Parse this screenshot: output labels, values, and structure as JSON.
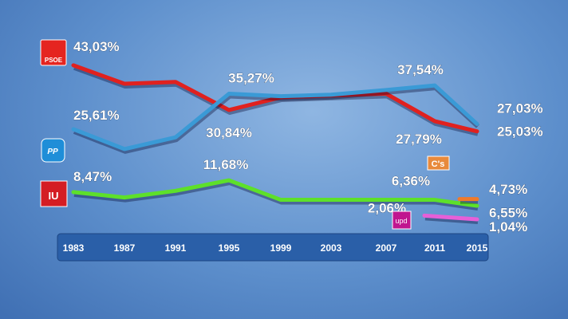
{
  "chart_data": {
    "type": "line",
    "categories": [
      "1983",
      "1987",
      "1991",
      "1995",
      "1999",
      "2003",
      "2007",
      "2011",
      "2015"
    ],
    "ylim": [
      0,
      45
    ],
    "grid": false,
    "series": [
      {
        "name": "PSOE",
        "color": "#e0211f",
        "values": [
          43.03,
          38.0,
          38.5,
          30.84,
          34.3,
          34.8,
          35.3,
          27.79,
          25.03
        ],
        "labels": [
          {
            "i": 0,
            "text": "43,03%"
          },
          {
            "i": 3,
            "text": "30,84%"
          },
          {
            "i": 7,
            "text": "27,79%"
          },
          {
            "i": 8,
            "text": "25,03%"
          }
        ]
      },
      {
        "name": "PP",
        "color": "#3a9ad6",
        "values": [
          25.61,
          20.2,
          23.4,
          35.27,
          34.6,
          35.0,
          36.3,
          37.54,
          27.03
        ],
        "labels": [
          {
            "i": 0,
            "text": "25,61%"
          },
          {
            "i": 3,
            "text": "35,27%"
          },
          {
            "i": 7,
            "text": "37,54%"
          },
          {
            "i": 8,
            "text": "27,03%"
          }
        ]
      },
      {
        "name": "IU",
        "color": "#5de02a",
        "values": [
          8.47,
          7.0,
          8.8,
          11.68,
          6.36,
          6.36,
          6.36,
          6.36,
          4.73
        ],
        "labels": [
          {
            "i": 0,
            "text": "8,47%"
          },
          {
            "i": 3,
            "text": "11,68%"
          },
          {
            "i": 7,
            "text": "6,36%"
          },
          {
            "i": 8,
            "text": "4,73%"
          }
        ]
      },
      {
        "name": "UPyD",
        "color": "#e65fd8",
        "values": [
          null,
          null,
          null,
          null,
          null,
          null,
          null,
          2.06,
          1.04
        ],
        "labels": [
          {
            "i": 7,
            "text": "2,06%"
          },
          {
            "i": 8,
            "text": "1,04%"
          }
        ]
      },
      {
        "name": "C's",
        "color": "#f07a2a",
        "values": [
          null,
          null,
          null,
          null,
          null,
          null,
          null,
          null,
          6.55
        ],
        "labels": [
          {
            "i": 8,
            "text": "6,55%"
          }
        ]
      }
    ]
  },
  "logos": {
    "psoe": "PSOE",
    "pp": "PP",
    "iu": "IU",
    "cs": "C's",
    "upyd": "upd"
  }
}
